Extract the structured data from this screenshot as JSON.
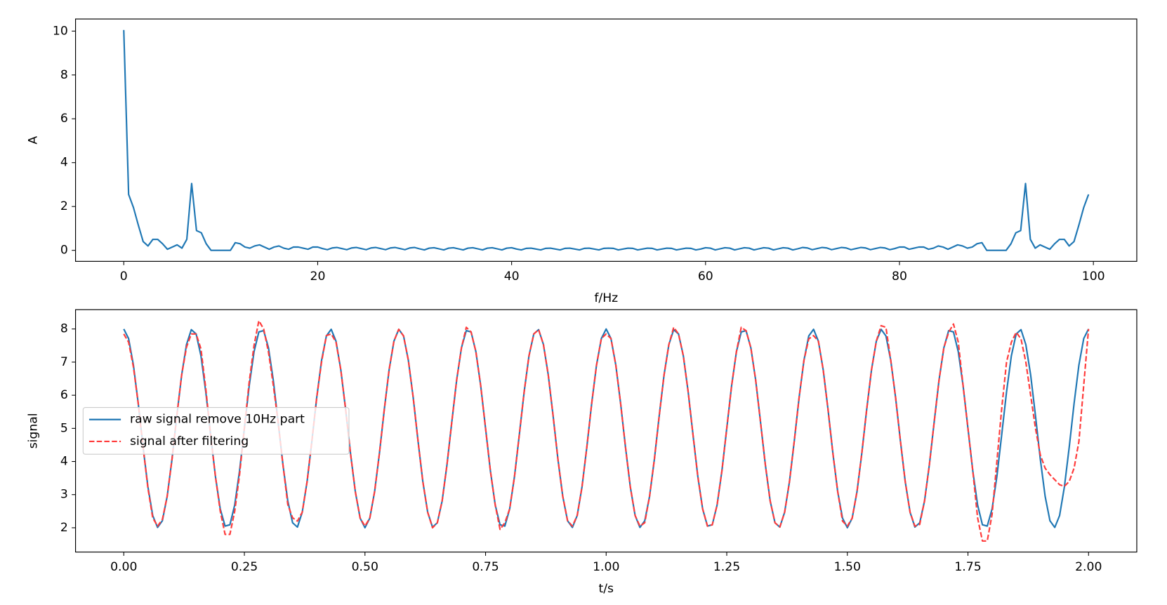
{
  "chart_data": [
    {
      "type": "line",
      "xlabel": "f/Hz",
      "ylabel": "A",
      "x": [
        0,
        0.5,
        1,
        1.5,
        2,
        2.5,
        3,
        3.5,
        4,
        4.5,
        5,
        5.5,
        6,
        6.5,
        7,
        7.5,
        8,
        8.5,
        9,
        9.5,
        10,
        10.5,
        11,
        11.5,
        12,
        12.5,
        13,
        13.5,
        14,
        14.5,
        15,
        15.5,
        16,
        16.5,
        17,
        17.5,
        18,
        18.5,
        19,
        19.5,
        20,
        20.5,
        21,
        21.5,
        22,
        22.5,
        23,
        23.5,
        24,
        24.5,
        25,
        25.5,
        26,
        26.5,
        27,
        27.5,
        28,
        28.5,
        29,
        29.5,
        30,
        30.5,
        31,
        31.5,
        32,
        32.5,
        33,
        33.5,
        34,
        34.5,
        35,
        35.5,
        36,
        36.5,
        37,
        37.5,
        38,
        38.5,
        39,
        39.5,
        40,
        40.5,
        41,
        41.5,
        42,
        42.5,
        43,
        43.5,
        44,
        44.5,
        45,
        45.5,
        46,
        46.5,
        47,
        47.5,
        48,
        48.5,
        49,
        49.5,
        50,
        50.5,
        51,
        51.5,
        52,
        52.5,
        53,
        53.5,
        54,
        54.5,
        55,
        55.5,
        56,
        56.5,
        57,
        57.5,
        58,
        58.5,
        59,
        59.5,
        60,
        60.5,
        61,
        61.5,
        62,
        62.5,
        63,
        63.5,
        64,
        64.5,
        65,
        65.5,
        66,
        66.5,
        67,
        67.5,
        68,
        68.5,
        69,
        69.5,
        70,
        70.5,
        71,
        71.5,
        72,
        72.5,
        73,
        73.5,
        74,
        74.5,
        75,
        75.5,
        76,
        76.5,
        77,
        77.5,
        78,
        78.5,
        79,
        79.5,
        80,
        80.5,
        81,
        81.5,
        82,
        82.5,
        83,
        83.5,
        84,
        84.5,
        85,
        85.5,
        86,
        86.5,
        87,
        87.5,
        88,
        88.5,
        89,
        89.5,
        90,
        90.5,
        91,
        91.5,
        92,
        92.5,
        93,
        93.5,
        94,
        94.5,
        95,
        95.5,
        96,
        96.5,
        97,
        97.5,
        98,
        98.5,
        99,
        99.5
      ],
      "series": [
        {
          "color": "#1f77b4",
          "values": [
            10.05,
            2.55,
            1.95,
            1.15,
            0.4,
            0.2,
            0.5,
            0.5,
            0.3,
            0.05,
            0.15,
            0.25,
            0.1,
            0.5,
            3.05,
            0.9,
            0.8,
            0.3,
            0,
            0,
            0,
            0,
            0,
            0.35,
            0.3,
            0.15,
            0.1,
            0.2,
            0.25,
            0.15,
            0.05,
            0.15,
            0.2,
            0.1,
            0.05,
            0.15,
            0.15,
            0.1,
            0.05,
            0.15,
            0.15,
            0.08,
            0.03,
            0.11,
            0.13,
            0.08,
            0.03,
            0.11,
            0.13,
            0.08,
            0.03,
            0.11,
            0.13,
            0.08,
            0.03,
            0.11,
            0.13,
            0.08,
            0.03,
            0.11,
            0.13,
            0.07,
            0.02,
            0.1,
            0.12,
            0.07,
            0.02,
            0.1,
            0.12,
            0.07,
            0.02,
            0.1,
            0.12,
            0.07,
            0.02,
            0.1,
            0.12,
            0.07,
            0.02,
            0.1,
            0.12,
            0.06,
            0.02,
            0.09,
            0.1,
            0.06,
            0.02,
            0.09,
            0.1,
            0.06,
            0.02,
            0.09,
            0.1,
            0.06,
            0.02,
            0.09,
            0.1,
            0.06,
            0.02,
            0.09,
            0.1,
            0.09,
            0.02,
            0.06,
            0.1,
            0.09,
            0.02,
            0.06,
            0.1,
            0.09,
            0.02,
            0.06,
            0.1,
            0.09,
            0.02,
            0.06,
            0.1,
            0.09,
            0.02,
            0.06,
            0.12,
            0.1,
            0.02,
            0.07,
            0.12,
            0.1,
            0.02,
            0.07,
            0.12,
            0.1,
            0.02,
            0.07,
            0.12,
            0.1,
            0.02,
            0.07,
            0.12,
            0.1,
            0.02,
            0.07,
            0.13,
            0.11,
            0.03,
            0.08,
            0.13,
            0.11,
            0.03,
            0.08,
            0.13,
            0.11,
            0.03,
            0.08,
            0.13,
            0.11,
            0.03,
            0.08,
            0.13,
            0.11,
            0.03,
            0.08,
            0.15,
            0.15,
            0.05,
            0.1,
            0.15,
            0.15,
            0.05,
            0.1,
            0.2,
            0.15,
            0.05,
            0.15,
            0.25,
            0.2,
            0.1,
            0.15,
            0.3,
            0.35,
            0,
            0,
            0,
            0,
            0,
            0.3,
            0.8,
            0.9,
            3.05,
            0.5,
            0.1,
            0.25,
            0.15,
            0.05,
            0.3,
            0.5,
            0.5,
            0.2,
            0.4,
            1.15,
            1.95,
            2.55
          ]
        }
      ],
      "xlim": [
        -4.975,
        104.475
      ],
      "ylim": [
        -0.5025,
        10.5525
      ],
      "xticks": [
        0,
        20,
        40,
        60,
        80,
        100
      ],
      "yticks": [
        0,
        2,
        4,
        6,
        8,
        10
      ]
    },
    {
      "type": "line",
      "xlabel": "t/s",
      "ylabel": "signal",
      "legend": "center left",
      "x": [
        0,
        0.01,
        0.02,
        0.03,
        0.04,
        0.05,
        0.06,
        0.07,
        0.08,
        0.09,
        0.1,
        0.11,
        0.12,
        0.13,
        0.14,
        0.15,
        0.16,
        0.17,
        0.18,
        0.19,
        0.2,
        0.21,
        0.22,
        0.23,
        0.24,
        0.25,
        0.26,
        0.27,
        0.28,
        0.29,
        0.3,
        0.31,
        0.32,
        0.33,
        0.34,
        0.35,
        0.36,
        0.37,
        0.38,
        0.39,
        0.4,
        0.41,
        0.42,
        0.43,
        0.44,
        0.45,
        0.46,
        0.47,
        0.48,
        0.49,
        0.5,
        0.51,
        0.52,
        0.53,
        0.54,
        0.55,
        0.56,
        0.57,
        0.58,
        0.59,
        0.6,
        0.61,
        0.62,
        0.63,
        0.64,
        0.65,
        0.66,
        0.67,
        0.68,
        0.69,
        0.7,
        0.71,
        0.72,
        0.73,
        0.74,
        0.75,
        0.76,
        0.77,
        0.78,
        0.79,
        0.8,
        0.81,
        0.82,
        0.83,
        0.84,
        0.85,
        0.86,
        0.87,
        0.88,
        0.89,
        0.9,
        0.91,
        0.92,
        0.93,
        0.94,
        0.95,
        0.96,
        0.97,
        0.98,
        0.99,
        1,
        1.01,
        1.02,
        1.03,
        1.04,
        1.05,
        1.06,
        1.07,
        1.08,
        1.09,
        1.1,
        1.11,
        1.12,
        1.13,
        1.14,
        1.15,
        1.16,
        1.17,
        1.18,
        1.19,
        1.2,
        1.21,
        1.22,
        1.23,
        1.24,
        1.25,
        1.26,
        1.27,
        1.28,
        1.29,
        1.3,
        1.31,
        1.32,
        1.33,
        1.34,
        1.35,
        1.36,
        1.37,
        1.38,
        1.39,
        1.4,
        1.41,
        1.42,
        1.43,
        1.44,
        1.45,
        1.46,
        1.47,
        1.48,
        1.49,
        1.5,
        1.51,
        1.52,
        1.53,
        1.54,
        1.55,
        1.56,
        1.57,
        1.58,
        1.59,
        1.6,
        1.61,
        1.62,
        1.63,
        1.64,
        1.65,
        1.66,
        1.67,
        1.68,
        1.69,
        1.7,
        1.71,
        1.72,
        1.73,
        1.74,
        1.75,
        1.76,
        1.77,
        1.78,
        1.79,
        1.8,
        1.81,
        1.82,
        1.83,
        1.84,
        1.85,
        1.86,
        1.87,
        1.88,
        1.89,
        1.9,
        1.91,
        1.92,
        1.93,
        1.94,
        1.95,
        1.96,
        1.97,
        1.98,
        1.99,
        2
      ],
      "series": [
        {
          "name": "raw signal remove 10Hz part",
          "color": "#1f77b4",
          "linestyle": "-",
          "values": [
            8,
            7.71,
            6.91,
            5.75,
            4.44,
            3.24,
            2.37,
            2.01,
            2.21,
            2.95,
            4.07,
            5.38,
            6.61,
            7.53,
            7.98,
            7.85,
            7.19,
            6.1,
            4.81,
            3.55,
            2.57,
            2.05,
            2.09,
            2.69,
            3.72,
            5,
            6.28,
            7.31,
            7.91,
            7.95,
            7.43,
            6.45,
            5.19,
            3.9,
            2.81,
            2.15,
            2.02,
            2.47,
            3.39,
            4.62,
            5.93,
            7.05,
            7.79,
            7.99,
            7.63,
            6.76,
            5.56,
            4.25,
            3.09,
            2.29,
            2,
            2.29,
            3.09,
            4.25,
            5.56,
            6.76,
            7.63,
            7.99,
            7.79,
            7.05,
            5.93,
            4.62,
            3.39,
            2.47,
            2.02,
            2.15,
            2.81,
            3.9,
            5.19,
            6.45,
            7.43,
            7.95,
            7.91,
            7.31,
            6.28,
            5,
            3.72,
            2.69,
            2.09,
            2.05,
            2.57,
            3.55,
            4.81,
            6.1,
            7.19,
            7.85,
            7.98,
            7.53,
            6.61,
            5.38,
            4.07,
            2.95,
            2.21,
            2.01,
            2.37,
            3.24,
            4.44,
            5.75,
            6.91,
            7.71,
            8,
            7.71,
            6.91,
            5.75,
            4.44,
            3.24,
            2.37,
            2.01,
            2.21,
            2.95,
            4.07,
            5.38,
            6.61,
            7.53,
            7.98,
            7.85,
            7.19,
            6.1,
            4.81,
            3.55,
            2.57,
            2.05,
            2.09,
            2.69,
            3.72,
            5,
            6.28,
            7.31,
            7.91,
            7.95,
            7.43,
            6.45,
            5.19,
            3.9,
            2.81,
            2.15,
            2.02,
            2.47,
            3.39,
            4.62,
            5.93,
            7.05,
            7.79,
            7.99,
            7.63,
            6.76,
            5.56,
            4.25,
            3.09,
            2.29,
            2,
            2.29,
            3.09,
            4.25,
            5.56,
            6.76,
            7.63,
            7.99,
            7.79,
            7.05,
            5.93,
            4.62,
            3.39,
            2.47,
            2.02,
            2.15,
            2.81,
            3.9,
            5.19,
            6.45,
            7.43,
            7.95,
            7.91,
            7.31,
            6.28,
            5,
            3.72,
            2.69,
            2.09,
            2.05,
            2.57,
            3.55,
            4.81,
            6.1,
            7.19,
            7.85,
            7.98,
            7.53,
            6.61,
            5.38,
            4.07,
            2.95,
            2.21,
            2.01,
            2.37,
            3.24,
            4.44,
            5.75,
            6.91,
            7.71,
            8
          ]
        },
        {
          "name": "signal after filtering",
          "color": "#ff3b3b",
          "linestyle": "--",
          "values": [
            7.85,
            7.6,
            6.85,
            5.75,
            4.44,
            3.2,
            2.3,
            2.05,
            2.25,
            2.95,
            4.07,
            5.38,
            6.61,
            7.45,
            7.85,
            7.85,
            7.4,
            6.2,
            4.81,
            3.55,
            2.5,
            1.8,
            1.8,
            2.5,
            3.6,
            5,
            6.4,
            7.5,
            8.25,
            8,
            7.3,
            6.3,
            5.19,
            3.9,
            2.7,
            2.3,
            2.2,
            2.47,
            3.39,
            4.62,
            5.93,
            7,
            7.8,
            7.85,
            7.6,
            6.76,
            5.56,
            4.25,
            3.09,
            2.29,
            2.05,
            2.29,
            3.09,
            4.25,
            5.56,
            6.76,
            7.63,
            7.99,
            7.79,
            7.05,
            5.93,
            4.62,
            3.39,
            2.47,
            2,
            2.15,
            2.81,
            3.9,
            5.19,
            6.45,
            7.43,
            8.05,
            7.91,
            7.31,
            6.28,
            5,
            3.72,
            2.69,
            1.95,
            2.15,
            2.57,
            3.55,
            4.81,
            6.1,
            7.19,
            7.85,
            7.98,
            7.53,
            6.61,
            5.38,
            4.07,
            2.95,
            2.21,
            2.05,
            2.37,
            3.24,
            4.44,
            5.75,
            6.91,
            7.71,
            7.85,
            7.71,
            6.91,
            5.75,
            4.44,
            3.24,
            2.37,
            2.05,
            2.15,
            2.95,
            4.07,
            5.38,
            6.61,
            7.53,
            8.05,
            7.85,
            7.19,
            6.1,
            4.81,
            3.55,
            2.57,
            2.05,
            2.09,
            2.69,
            3.72,
            5,
            6.28,
            7.31,
            8.05,
            7.95,
            7.43,
            6.45,
            5.19,
            3.9,
            2.81,
            2.15,
            2.02,
            2.47,
            3.39,
            4.62,
            5.93,
            7.05,
            7.7,
            7.8,
            7.63,
            6.76,
            5.56,
            4.25,
            3.09,
            2.2,
            2.05,
            2.29,
            3.09,
            4.25,
            5.56,
            6.76,
            7.63,
            8.1,
            8.05,
            7.05,
            5.93,
            4.62,
            3.39,
            2.47,
            2.05,
            2.1,
            2.81,
            3.9,
            5.19,
            6.45,
            7.43,
            7.9,
            8.15,
            7.6,
            6.28,
            5,
            3.72,
            2.3,
            1.6,
            1.6,
            2.4,
            4,
            5.6,
            7,
            7.6,
            7.9,
            7.7,
            7,
            6,
            5,
            4.2,
            3.8,
            3.6,
            3.45,
            3.3,
            3.25,
            3.4,
            3.8,
            4.6,
            6.3,
            8
          ]
        }
      ],
      "xlim": [
        -0.1,
        2.1
      ],
      "ylim": [
        1.2675,
        8.5825
      ],
      "xticks": [
        {
          "value": 0,
          "label": "0.00"
        },
        {
          "value": 0.25,
          "label": "0.25"
        },
        {
          "value": 0.5,
          "label": "0.50"
        },
        {
          "value": 0.75,
          "label": "0.75"
        },
        {
          "value": 1,
          "label": "1.00"
        },
        {
          "value": 1.25,
          "label": "1.25"
        },
        {
          "value": 1.5,
          "label": "1.50"
        },
        {
          "value": 1.75,
          "label": "1.75"
        },
        {
          "value": 2,
          "label": "2.00"
        }
      ],
      "yticks": [
        2,
        3,
        4,
        5,
        6,
        7,
        8
      ]
    }
  ]
}
